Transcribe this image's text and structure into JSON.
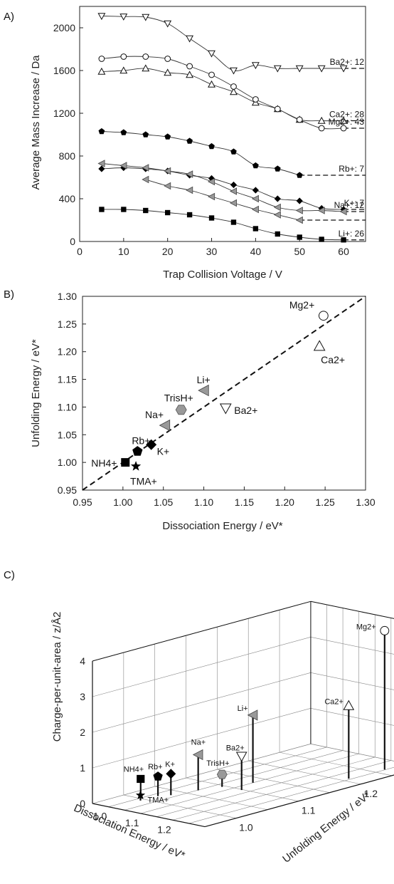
{
  "chart_data": [
    {
      "panel": "A)",
      "type": "scatter",
      "xlabel": "Trap Collision Voltage / V",
      "ylabel": "Average Mass Increase / Da",
      "xlim": [
        0,
        65
      ],
      "ylim": [
        0,
        2200
      ],
      "xticks": [
        "0",
        "10",
        "20",
        "30",
        "40",
        "50",
        "60"
      ],
      "yticks": [
        "0",
        "400",
        "800",
        "1200",
        "1600",
        "2000"
      ],
      "series": [
        {
          "name": "Ba",
          "label": "Ba2+: 12",
          "marker": "triangle-down-open",
          "x": [
            5,
            10,
            15,
            20,
            25,
            30,
            35,
            40,
            45,
            50,
            55,
            60
          ],
          "y": [
            2110,
            2105,
            2100,
            2040,
            1900,
            1760,
            1600,
            1650,
            1620,
            1620,
            1620,
            1620
          ]
        },
        {
          "name": "Ca",
          "label": "Ca2+: 28",
          "marker": "triangle-up-open",
          "x": [
            5,
            10,
            15,
            20,
            25,
            30,
            35,
            40,
            45,
            50,
            55,
            60
          ],
          "y": [
            1590,
            1600,
            1620,
            1580,
            1560,
            1470,
            1400,
            1300,
            1240,
            1140,
            1130,
            1130
          ]
        },
        {
          "name": "Mg",
          "label": "Mg2+: 43",
          "marker": "circle-open",
          "x": [
            5,
            10,
            15,
            20,
            25,
            30,
            35,
            40,
            45,
            50,
            55,
            60
          ],
          "y": [
            1710,
            1730,
            1730,
            1710,
            1640,
            1560,
            1450,
            1330,
            1240,
            1140,
            1060,
            1060
          ]
        },
        {
          "name": "Rb",
          "label": "Rb+: 7",
          "marker": "pentagon",
          "x": [
            5,
            10,
            15,
            20,
            25,
            30,
            35,
            40,
            45,
            50
          ],
          "y": [
            1030,
            1020,
            1000,
            980,
            940,
            890,
            840,
            710,
            680,
            620
          ]
        },
        {
          "name": "K",
          "label": "K+: 7",
          "marker": "diamond",
          "x": [
            5,
            10,
            15,
            20,
            25,
            30,
            35,
            40,
            45,
            50,
            55,
            60
          ],
          "y": [
            680,
            690,
            680,
            660,
            620,
            590,
            530,
            480,
            400,
            380,
            310,
            300
          ]
        },
        {
          "name": "Na",
          "label": "Na+: 12",
          "marker": "triangle-left-grey",
          "x": [
            5,
            10,
            15,
            20,
            25,
            30,
            35,
            40,
            45,
            50,
            55,
            60
          ],
          "y": [
            730,
            710,
            690,
            660,
            630,
            560,
            470,
            400,
            320,
            290,
            290,
            280
          ]
        },
        {
          "name": "Na2",
          "label": "",
          "marker": "triangle-left-grey",
          "x": [
            15,
            20,
            25,
            30,
            35,
            40,
            45,
            50
          ],
          "y": [
            580,
            520,
            480,
            420,
            360,
            300,
            250,
            200
          ]
        },
        {
          "name": "Li",
          "label": "Li+: 26",
          "marker": "square",
          "x": [
            5,
            10,
            15,
            20,
            25,
            30,
            35,
            40,
            45,
            50,
            55,
            60
          ],
          "y": [
            300,
            300,
            290,
            270,
            250,
            220,
            180,
            120,
            70,
            40,
            20,
            15
          ]
        }
      ]
    },
    {
      "panel": "B)",
      "type": "scatter",
      "xlabel": "Dissociation Energy / eV*",
      "ylabel": "Unfolding Energy / eV*",
      "xlim": [
        0.95,
        1.3
      ],
      "ylim": [
        0.95,
        1.3
      ],
      "xticks": [
        "0.95",
        "1.00",
        "1.05",
        "1.10",
        "1.15",
        "1.20",
        "1.25",
        "1.30"
      ],
      "yticks": [
        "0.95",
        "1.00",
        "1.05",
        "1.10",
        "1.15",
        "1.20",
        "1.25",
        "1.30"
      ],
      "points": [
        {
          "label": "Mg2+",
          "x": 1.248,
          "y": 1.265,
          "marker": "circle-open"
        },
        {
          "label": "Ca2+",
          "x": 1.243,
          "y": 1.21,
          "marker": "triangle-up-open"
        },
        {
          "label": "Li+",
          "x": 1.1,
          "y": 1.13,
          "marker": "triangle-left-grey"
        },
        {
          "label": "TrisH+",
          "x": 1.072,
          "y": 1.095,
          "marker": "hexagon-grey"
        },
        {
          "label": "Ba2+",
          "x": 1.127,
          "y": 1.098,
          "marker": "triangle-down-open"
        },
        {
          "label": "Na+",
          "x": 1.052,
          "y": 1.067,
          "marker": "triangle-left-grey"
        },
        {
          "label": "Rb+",
          "x": 1.018,
          "y": 1.02,
          "marker": "pentagon"
        },
        {
          "label": "K+",
          "x": 1.035,
          "y": 1.032,
          "marker": "diamond"
        },
        {
          "label": "NH4+",
          "x": 1.003,
          "y": 1.0,
          "marker": "square"
        },
        {
          "label": "TMA+",
          "x": 1.016,
          "y": 0.993,
          "marker": "star"
        }
      ]
    },
    {
      "panel": "C)",
      "type": "scatter",
      "xlabel": "Dissociation Energy / eV*",
      "ylabel": "Unfolding Energy / eV*",
      "zlabel": "Charge-per-unit-area / z/Å2",
      "xticks": [
        "1.0",
        "1.1",
        "1.2"
      ],
      "yticks": [
        "1.0",
        "1.1",
        "1.2"
      ],
      "zticks": [
        "0",
        "1",
        "2",
        "3",
        "4"
      ],
      "zlim": [
        0,
        4
      ],
      "points": [
        {
          "label": "Mg2+",
          "x": 1.248,
          "y": 1.265,
          "z": 3.9,
          "marker": "circle-open"
        },
        {
          "label": "Ca2+",
          "x": 1.243,
          "y": 1.21,
          "z": 2.05,
          "marker": "triangle-up-open"
        },
        {
          "label": "Li+",
          "x": 1.1,
          "y": 1.13,
          "z": 1.9,
          "marker": "triangle-left-grey"
        },
        {
          "label": "Ba2+",
          "x": 1.127,
          "y": 1.098,
          "z": 0.95,
          "marker": "triangle-down-open"
        },
        {
          "label": "Na+",
          "x": 1.052,
          "y": 1.067,
          "z": 1.0,
          "marker": "triangle-left-grey"
        },
        {
          "label": "TrisH+",
          "x": 1.072,
          "y": 1.095,
          "z": 0.35,
          "marker": "hexagon-grey"
        },
        {
          "label": "K+",
          "x": 1.035,
          "y": 1.032,
          "z": 0.6,
          "marker": "diamond"
        },
        {
          "label": "Rb+",
          "x": 1.018,
          "y": 1.02,
          "z": 0.55,
          "marker": "pentagon"
        },
        {
          "label": "NH4+",
          "x": 1.003,
          "y": 1.0,
          "z": 0.55,
          "marker": "square"
        },
        {
          "label": "TMA+",
          "x": 1.016,
          "y": 0.993,
          "z": 0.15,
          "marker": "star"
        }
      ]
    }
  ]
}
